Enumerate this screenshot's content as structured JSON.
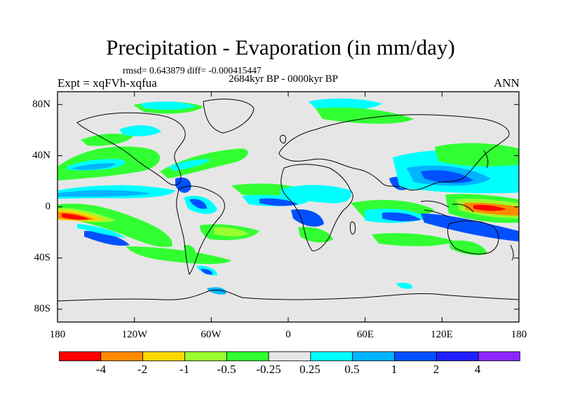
{
  "title": "Precipitation - Evaporation (in mm/day)",
  "stats": "rmsd= 0.643879 diff= -0.000415447",
  "period": "2684kyr BP - 0000kyr BP",
  "experiment": "Expt = xqFVh-xqfua",
  "season": "ANN",
  "axes": {
    "y_ticks": [
      "80N",
      "40N",
      "0",
      "40S",
      "80S"
    ],
    "x_ticks": [
      "180",
      "120W",
      "60W",
      "0",
      "60E",
      "120E",
      "180"
    ]
  },
  "colorbar": {
    "labels": [
      "-4",
      "-2",
      "-1",
      "-0.5",
      "-0.25",
      "0.25",
      "0.5",
      "1",
      "2",
      "4"
    ],
    "colors": [
      "#ff0000",
      "#ff8c00",
      "#ffd700",
      "#9aff2f",
      "#32ff32",
      "#e6e6e6",
      "#00ffff",
      "#00b4ff",
      "#0050ff",
      "#2020ff",
      "#8c28ff"
    ]
  },
  "colors": {
    "ocean_background": "#e6e6e6",
    "coastline": "#000000",
    "green": "#32ff32",
    "yellow_green": "#9aff2f",
    "yellow": "#ffd700",
    "orange": "#ff8c00",
    "red": "#ff0000",
    "cyan": "#00ffff",
    "light_blue": "#00b4ff",
    "blue": "#0050ff",
    "dark_blue": "#2020ff",
    "purple": "#8c28ff"
  }
}
